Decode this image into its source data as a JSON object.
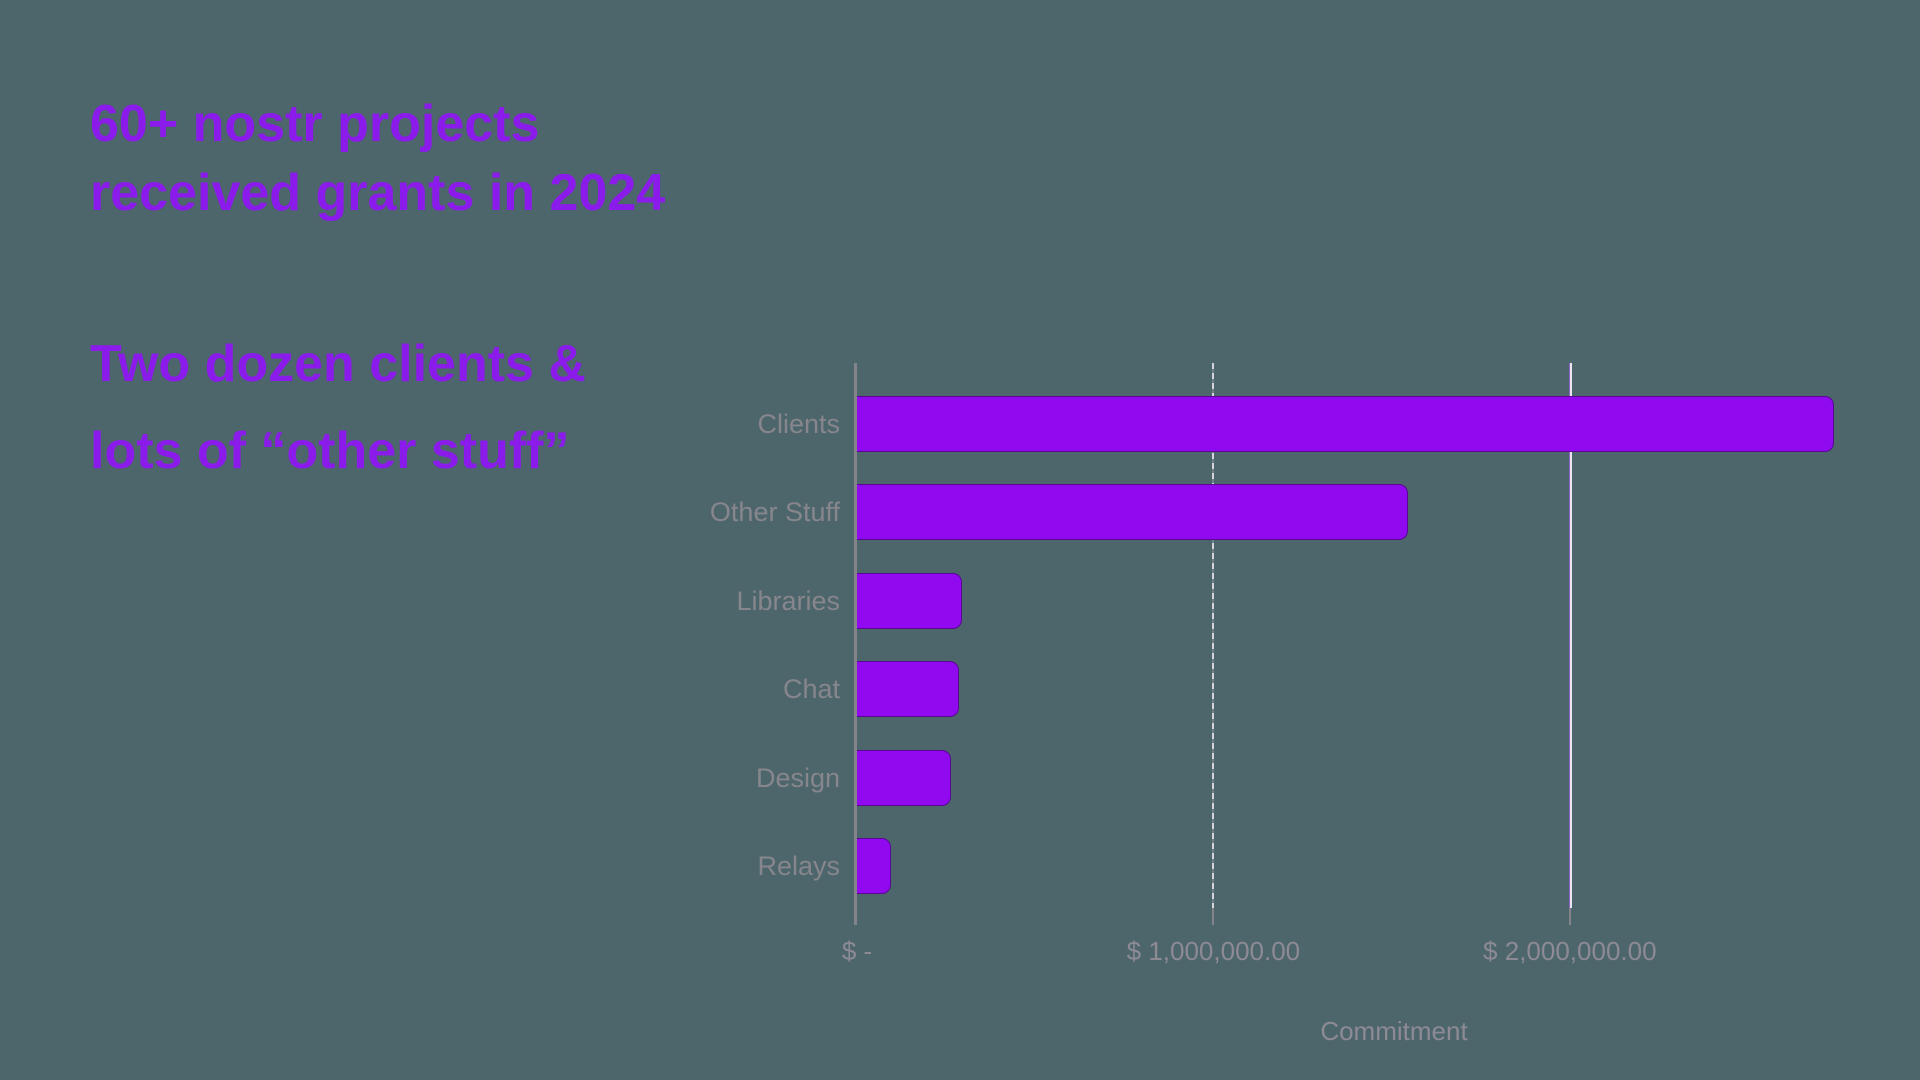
{
  "slide": {
    "background_color": "#4C666C",
    "accent_color": "#8B1BEA"
  },
  "title": {
    "line1": "60+ nostr projects",
    "line2": "received grants in 2024"
  },
  "subtitle": {
    "line1": "Two dozen clients &",
    "line2": "lots of “other stuff”"
  },
  "chart_data": {
    "type": "bar",
    "orientation": "horizontal",
    "title": "",
    "xlabel": "Commitment",
    "ylabel": "",
    "categories": [
      "Clients",
      "Other Stuff",
      "Libraries",
      "Chat",
      "Design",
      "Relays"
    ],
    "values": [
      2740000,
      1545000,
      295000,
      285000,
      265000,
      95000
    ],
    "xlim": [
      0,
      2920000
    ],
    "x_ticks": [
      {
        "value": 0,
        "label": "$ -"
      },
      {
        "value": 1000000,
        "label": "$ 1,000,000.00"
      },
      {
        "value": 2000000,
        "label": "$ 2,000,000.00"
      }
    ],
    "grid": true,
    "legend": false,
    "colors": {
      "bar": "#9109EE",
      "category_label": "#86868C",
      "tick_label": "#8D8A94",
      "axis_line": "#85838A",
      "gridline_dashed": "#D6D4D8",
      "gridline_solid": "#E9E6F2",
      "gridline_solid_edge": "#8F62C8"
    }
  }
}
